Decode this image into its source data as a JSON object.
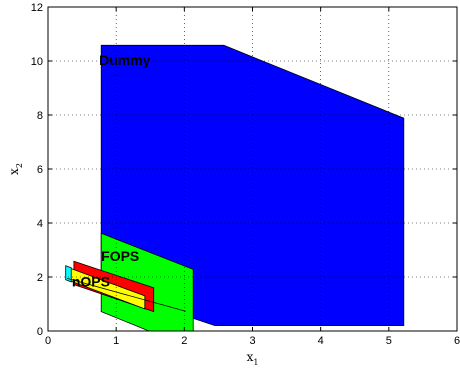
{
  "chart_data": {
    "type": "area",
    "title": "",
    "xlabel": {
      "base": "x",
      "sub": "1"
    },
    "ylabel": {
      "base": "x",
      "sub": "2"
    },
    "xlim": [
      0,
      6
    ],
    "ylim": [
      0,
      12
    ],
    "xticks": [
      "0",
      "1",
      "2",
      "3",
      "4",
      "5",
      "6"
    ],
    "yticks": [
      "0",
      "2",
      "4",
      "6",
      "8",
      "10",
      "12"
    ],
    "grid": true,
    "regions": [
      {
        "name": "Dummy",
        "fill": "#0000ff",
        "label_pos": [
          0.75,
          9.85
        ],
        "points": [
          [
            0.78,
            10.58
          ],
          [
            2.58,
            10.58
          ],
          [
            5.22,
            7.88
          ],
          [
            5.22,
            0.2
          ],
          [
            2.45,
            0.2
          ],
          [
            0.78,
            1.6
          ]
        ]
      },
      {
        "name": "FOPS",
        "fill": "#00ff00",
        "label_pos": [
          0.78,
          2.6
        ],
        "points": [
          [
            0.78,
            3.62
          ],
          [
            2.13,
            2.28
          ],
          [
            2.13,
            0.0
          ],
          [
            1.48,
            0.0
          ],
          [
            0.78,
            0.72
          ]
        ]
      },
      {
        "name": "",
        "fill": "#ff0000",
        "points": [
          [
            0.38,
            2.58
          ],
          [
            1.55,
            1.6
          ],
          [
            1.55,
            0.72
          ],
          [
            0.38,
            1.72
          ]
        ]
      },
      {
        "name": "",
        "fill": "#ffff00",
        "points": [
          [
            0.3,
            2.35
          ],
          [
            1.42,
            1.3
          ],
          [
            1.42,
            0.82
          ],
          [
            0.3,
            1.88
          ]
        ]
      },
      {
        "name": "nOPS",
        "fill": "#00ffff",
        "label_pos": [
          0.35,
          1.65
        ],
        "points": [
          [
            0.26,
            2.42
          ],
          [
            0.34,
            2.34
          ],
          [
            0.34,
            1.82
          ],
          [
            0.26,
            1.9
          ]
        ]
      }
    ],
    "lines": [
      {
        "points": [
          [
            0.28,
            1.95
          ],
          [
            2.02,
            0.73
          ]
        ]
      }
    ]
  }
}
